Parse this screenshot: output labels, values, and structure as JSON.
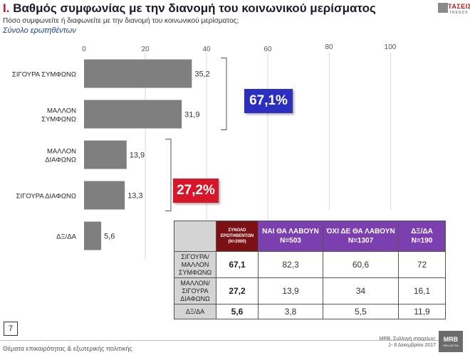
{
  "header": {
    "roman": "I.",
    "title": "Βαθμός συμφωνίας με την διανομή του κοινωνικού μερίσματος",
    "subtitle": "Πόσο συμφωνείτε ή διαφωνείτε με την διανομή του κοινωνικού μερίσματος;",
    "base": "Σύνολο ερωτηθέντων"
  },
  "logo": {
    "text": "ΤΑΣΕΙΣ",
    "sub": "TRENDS"
  },
  "chart_data": {
    "type": "bar",
    "orientation": "horizontal",
    "categories": [
      [
        "ΣΙΓΟΥΡΑ ΣΥΜΦΩΝΩ"
      ],
      [
        "ΜΑΛΛΟΝ",
        "ΣΥΜΦΩΝΩ"
      ],
      [
        "ΜΑΛΛΟΝ",
        "ΔΙΑΦΩΝΩ"
      ],
      [
        "ΣΙΓΟΥΡΑ ΔΙΑΦΩΝΩ"
      ],
      [
        "ΔΞ/ΔΑ"
      ]
    ],
    "values": [
      35.2,
      31.9,
      13.9,
      13.3,
      5.6
    ],
    "value_labels": [
      "35,2",
      "31,9",
      "13,9",
      "13,3",
      "5,6"
    ],
    "xlim": [
      0,
      100
    ],
    "xticks": [
      0,
      20,
      40,
      60,
      80,
      100
    ],
    "bar_color": "#7f7f7f",
    "grid": true,
    "grid_color": "#d8d8d8",
    "groups": [
      {
        "label": "67,1%",
        "color": "#2a2fc0",
        "bars": [
          0,
          1
        ]
      },
      {
        "label": "27,2%",
        "color": "#d9152a",
        "bars": [
          2,
          3
        ]
      }
    ]
  },
  "table": {
    "corner": "",
    "total_header": [
      "ΣΥΝΟΛΟ",
      "ΕΡΩΤΗΘΕΝΤΩΝ",
      "(Ν=2000)"
    ],
    "columns": [
      [
        "ΝΑΙ ΘΑ ΛΑΒΟΥΝ",
        "Ν=503"
      ],
      [
        "ΌΧΙ ΔΕ ΘΑ ΛΑΒΟΥΝ",
        "Ν=1307"
      ],
      [
        "ΔΞ/ΔΑ",
        "Ν=190"
      ]
    ],
    "rows": [
      {
        "label": [
          "ΣΙΓΟΥΡΑ/",
          "ΜΑΛΛΟΝ",
          "ΣΥΜΦΩΝΩ"
        ],
        "total": "67,1",
        "values": [
          "82,3",
          "60,6",
          "72"
        ]
      },
      {
        "label": [
          "ΜΑΛΛΟΝ/",
          "ΣΙΓΟΥΡΑ",
          "ΔΙΑΦΩΝΩ"
        ],
        "total": "27,2",
        "values": [
          "13,9",
          "34",
          "16,1"
        ]
      },
      {
        "label": [
          "ΔΞ/ΔΑ"
        ],
        "total": "5,6",
        "values": [
          "3,8",
          "5,5",
          "11,9"
        ]
      }
    ]
  },
  "footer": {
    "page": "7",
    "left": "Θέματα επικαιρότητας & εξωτερικής πολιτικής",
    "right_line1": "MRB, Συλλογή στοιχείων:",
    "right_line2": "1- 8 Δεκεμβρίου 2017",
    "mrb": "MRB",
    "mrb_sub": "HELLAS SA"
  }
}
